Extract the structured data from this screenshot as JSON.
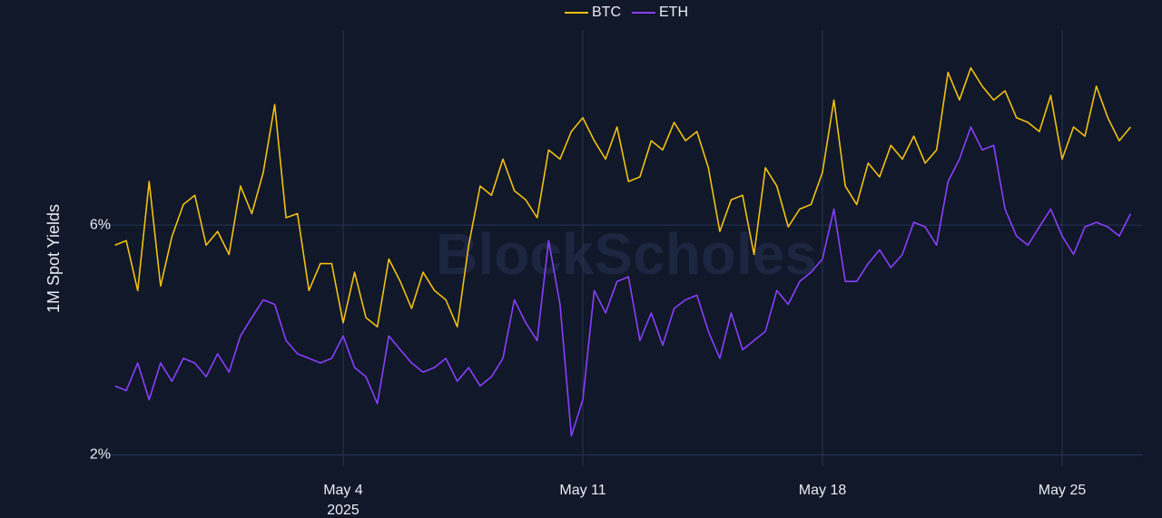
{
  "chart_data": {
    "type": "line",
    "y_axis_label": "1M Spot Yields",
    "watermark": "BlockScholes",
    "x": [
      "2025-04-27 08:00",
      "2025-04-27 16:00",
      "2025-04-28 00:00",
      "2025-04-28 08:00",
      "2025-04-28 16:00",
      "2025-04-29 00:00",
      "2025-04-29 08:00",
      "2025-04-29 16:00",
      "2025-04-30 00:00",
      "2025-04-30 08:00",
      "2025-04-30 16:00",
      "2025-05-01 00:00",
      "2025-05-01 08:00",
      "2025-05-01 16:00",
      "2025-05-02 00:00",
      "2025-05-02 08:00",
      "2025-05-02 16:00",
      "2025-05-03 00:00",
      "2025-05-03 08:00",
      "2025-05-03 16:00",
      "2025-05-04 00:00",
      "2025-05-04 08:00",
      "2025-05-04 16:00",
      "2025-05-05 00:00",
      "2025-05-05 08:00",
      "2025-05-05 16:00",
      "2025-05-06 00:00",
      "2025-05-06 08:00",
      "2025-05-06 16:00",
      "2025-05-07 00:00",
      "2025-05-07 08:00",
      "2025-05-07 16:00",
      "2025-05-08 00:00",
      "2025-05-08 08:00",
      "2025-05-08 16:00",
      "2025-05-09 00:00",
      "2025-05-09 08:00",
      "2025-05-09 16:00",
      "2025-05-10 00:00",
      "2025-05-10 08:00",
      "2025-05-10 16:00",
      "2025-05-11 00:00",
      "2025-05-11 08:00",
      "2025-05-11 16:00",
      "2025-05-12 00:00",
      "2025-05-12 08:00",
      "2025-05-12 16:00",
      "2025-05-13 00:00",
      "2025-05-13 08:00",
      "2025-05-13 16:00",
      "2025-05-14 00:00",
      "2025-05-14 08:00",
      "2025-05-14 16:00",
      "2025-05-15 00:00",
      "2025-05-15 08:00",
      "2025-05-15 16:00",
      "2025-05-16 00:00",
      "2025-05-16 08:00",
      "2025-05-16 16:00",
      "2025-05-17 00:00",
      "2025-05-17 08:00",
      "2025-05-17 16:00",
      "2025-05-18 00:00",
      "2025-05-18 08:00",
      "2025-05-18 16:00",
      "2025-05-19 00:00",
      "2025-05-19 08:00",
      "2025-05-19 16:00",
      "2025-05-20 00:00",
      "2025-05-20 08:00",
      "2025-05-20 16:00",
      "2025-05-21 00:00",
      "2025-05-21 08:00",
      "2025-05-21 16:00",
      "2025-05-22 00:00",
      "2025-05-22 08:00",
      "2025-05-22 16:00",
      "2025-05-23 00:00",
      "2025-05-23 08:00",
      "2025-05-23 16:00",
      "2025-05-24 00:00",
      "2025-05-24 08:00",
      "2025-05-24 16:00",
      "2025-05-25 00:00",
      "2025-05-25 08:00",
      "2025-05-25 16:00",
      "2025-05-26 00:00",
      "2025-05-26 08:00",
      "2025-05-26 16:00",
      "2025-05-27 00:00"
    ],
    "series": [
      {
        "name": "BTC",
        "color": "#f2c00f",
        "values": [
          5.65,
          5.73,
          4.86,
          6.76,
          4.94,
          5.8,
          6.36,
          6.52,
          5.65,
          5.89,
          5.49,
          6.68,
          6.2,
          6.92,
          8.1,
          6.13,
          6.2,
          4.86,
          5.33,
          5.33,
          4.3,
          5.18,
          4.39,
          4.23,
          5.41,
          5.02,
          4.55,
          5.18,
          4.86,
          4.7,
          4.23,
          5.65,
          6.68,
          6.52,
          7.15,
          6.6,
          6.44,
          6.13,
          7.31,
          7.15,
          7.63,
          7.87,
          7.47,
          7.15,
          7.71,
          6.76,
          6.84,
          7.47,
          7.31,
          7.79,
          7.47,
          7.63,
          7.0,
          5.89,
          6.44,
          6.52,
          5.49,
          7.0,
          6.68,
          5.97,
          6.28,
          6.36,
          6.92,
          8.18,
          6.68,
          6.36,
          7.08,
          6.84,
          7.39,
          7.15,
          7.55,
          7.08,
          7.31,
          8.66,
          8.18,
          8.74,
          8.42,
          8.18,
          8.34,
          7.87,
          7.79,
          7.63,
          8.26,
          7.15,
          7.71,
          7.55,
          8.42,
          7.87,
          7.47,
          7.71
        ]
      },
      {
        "name": "ETH",
        "color": "#8a3ffc",
        "values": [
          3.2,
          3.12,
          3.6,
          2.96,
          3.6,
          3.28,
          3.68,
          3.6,
          3.36,
          3.76,
          3.44,
          4.07,
          4.39,
          4.7,
          4.62,
          3.99,
          3.76,
          3.68,
          3.6,
          3.68,
          4.07,
          3.52,
          3.36,
          2.89,
          4.07,
          3.83,
          3.6,
          3.44,
          3.52,
          3.68,
          3.28,
          3.52,
          3.2,
          3.36,
          3.68,
          4.7,
          4.3,
          3.99,
          5.73,
          4.62,
          2.33,
          2.96,
          4.86,
          4.47,
          5.02,
          5.1,
          3.99,
          4.47,
          3.91,
          4.55,
          4.7,
          4.78,
          4.15,
          3.68,
          4.47,
          3.83,
          3.99,
          4.15,
          4.86,
          4.62,
          5.02,
          5.18,
          5.41,
          6.28,
          5.02,
          5.02,
          5.33,
          5.57,
          5.26,
          5.49,
          6.05,
          5.97,
          5.65,
          6.76,
          7.15,
          7.71,
          7.31,
          7.39,
          6.28,
          5.81,
          5.65,
          5.97,
          6.28,
          5.81,
          5.49,
          5.97,
          6.05,
          5.97,
          5.81,
          6.2
        ]
      }
    ],
    "xlim": [
      "2025-04-27 00:00",
      "2025-05-27 08:00"
    ],
    "xticks": [
      {
        "value": "2025-05-04 00:00",
        "label": "May 4",
        "sublabel": "2025"
      },
      {
        "value": "2025-05-11 00:00",
        "label": "May 11"
      },
      {
        "value": "2025-05-18 00:00",
        "label": "May 18"
      },
      {
        "value": "2025-05-25 00:00",
        "label": "May 25"
      }
    ],
    "ylim": [
      1.8,
      9.4
    ],
    "yticks": [
      {
        "value": 2,
        "label": "2%"
      },
      {
        "value": 6,
        "label": "6%"
      }
    ],
    "grid": true,
    "legend": "top"
  }
}
